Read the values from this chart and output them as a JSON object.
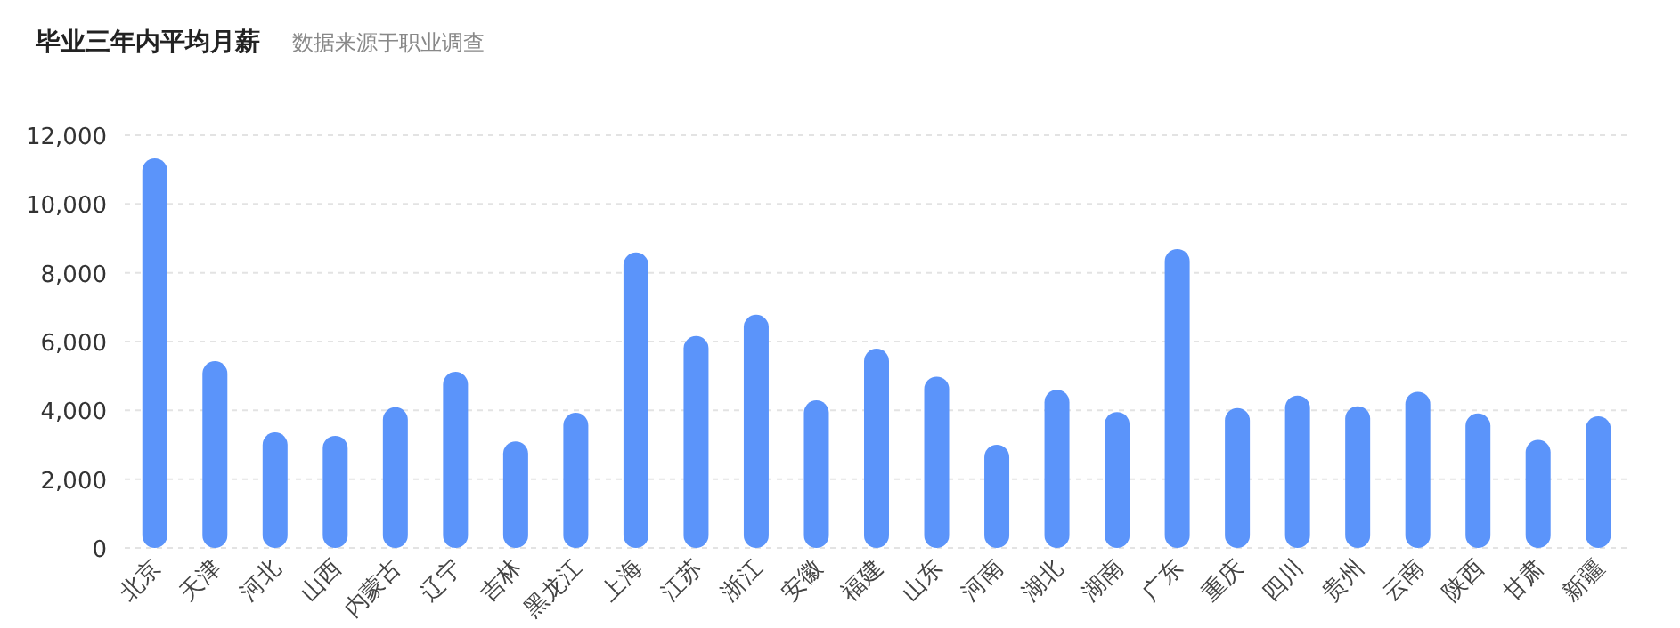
{
  "chart_data": {
    "type": "bar",
    "title": "毕业三年内平均月薪",
    "subtitle": "数据来源于职业调查",
    "categories": [
      "北京",
      "天津",
      "河北",
      "山西",
      "内蒙古",
      "辽宁",
      "吉林",
      "黑龙江",
      "上海",
      "江苏",
      "浙江",
      "安徽",
      "福建",
      "山东",
      "河南",
      "湖北",
      "湖南",
      "广东",
      "重庆",
      "四川",
      "贵州",
      "云南",
      "陕西",
      "甘肃",
      "新疆"
    ],
    "values": [
      11330,
      5430,
      3360,
      3260,
      4090,
      5120,
      3100,
      3930,
      8590,
      6160,
      6780,
      4290,
      5790,
      4980,
      3000,
      4600,
      3950,
      8690,
      4070,
      4430,
      4120,
      4540,
      3910,
      3140,
      3830
    ],
    "color": "#5b94fa",
    "ylim": [
      0,
      12000
    ],
    "yticks": [
      {
        "value": 0,
        "label": "0"
      },
      {
        "value": 2000,
        "label": "2,000"
      },
      {
        "value": 4000,
        "label": "4,000"
      },
      {
        "value": 6000,
        "label": "6,000"
      },
      {
        "value": 8000,
        "label": "8,000"
      },
      {
        "value": 10000,
        "label": "10,000"
      },
      {
        "value": 12000,
        "label": "12,000"
      }
    ],
    "grid": "y"
  }
}
